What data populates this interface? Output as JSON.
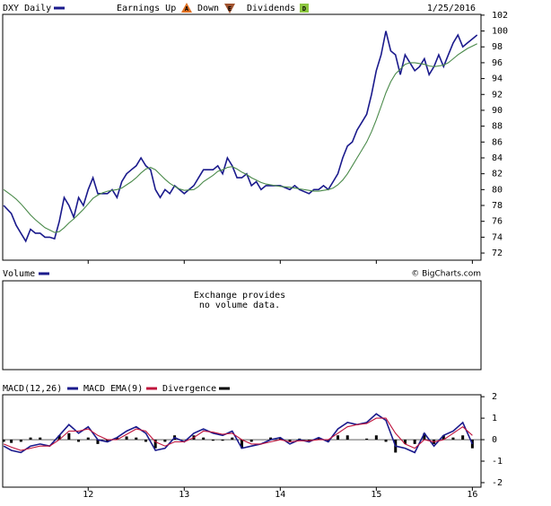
{
  "chart_data": [
    {
      "type": "line",
      "title": "DXY Daily",
      "date": "1/25/2016",
      "annotations": [
        "Earnings Up",
        "Down",
        "Dividends"
      ],
      "annotation_icons": [
        "A",
        "E",
        "D"
      ],
      "xlim": [
        11.11,
        16.09
      ],
      "xticks": [
        12,
        13,
        14,
        15,
        16
      ],
      "ylim": [
        71.1,
        102.1
      ],
      "yticks": [
        72,
        74,
        76,
        78,
        80,
        82,
        84,
        86,
        88,
        90,
        92,
        94,
        96,
        98,
        100,
        102
      ],
      "x": [
        11.12,
        11.2,
        11.25,
        11.3,
        11.35,
        11.4,
        11.45,
        11.5,
        11.55,
        11.6,
        11.65,
        11.7,
        11.75,
        11.8,
        11.85,
        11.9,
        11.95,
        12.0,
        12.05,
        12.1,
        12.15,
        12.2,
        12.25,
        12.3,
        12.35,
        12.4,
        12.45,
        12.5,
        12.55,
        12.6,
        12.65,
        12.7,
        12.75,
        12.8,
        12.85,
        12.9,
        12.95,
        13.0,
        13.1,
        13.15,
        13.2,
        13.3,
        13.35,
        13.4,
        13.45,
        13.5,
        13.55,
        13.6,
        13.65,
        13.7,
        13.75,
        13.8,
        13.85,
        13.9,
        14.0,
        14.1,
        14.15,
        14.2,
        14.3,
        14.35,
        14.4,
        14.45,
        14.5,
        14.55,
        14.6,
        14.65,
        14.7,
        14.75,
        14.8,
        14.85,
        14.9,
        14.95,
        15.0,
        15.05,
        15.1,
        15.15,
        15.2,
        15.25,
        15.3,
        15.35,
        15.4,
        15.45,
        15.5,
        15.55,
        15.6,
        15.65,
        15.7,
        15.75,
        15.8,
        15.85,
        15.9,
        15.95,
        16.0,
        16.05
      ],
      "series": [
        {
          "name": "DXY Daily",
          "color": "#1a1a8c",
          "values": [
            78,
            77,
            75.5,
            74.5,
            73.5,
            75,
            74.5,
            74.5,
            74,
            74,
            73.8,
            76,
            79,
            78,
            76.5,
            79,
            78,
            80,
            81.5,
            79.5,
            79.5,
            79.5,
            80,
            79,
            81,
            82,
            82.5,
            83,
            84,
            83,
            82.5,
            80,
            79,
            80,
            79.5,
            80.5,
            80,
            79.5,
            80.5,
            81.5,
            82.5,
            82.5,
            83,
            82,
            84,
            83,
            81.5,
            81.5,
            82,
            80.5,
            81,
            80,
            80.5,
            80.5,
            80.5,
            80,
            80.5,
            80,
            79.5,
            80,
            80,
            80.5,
            80,
            81,
            82,
            84,
            85.5,
            86,
            87.5,
            88.5,
            89.5,
            92,
            95,
            97,
            100,
            97.5,
            97,
            94.5,
            97,
            96,
            95,
            95.5,
            96.5,
            94.5,
            95.5,
            97,
            95.5,
            97,
            98.5,
            99.5,
            98,
            98.5,
            99,
            99.5
          ]
        },
        {
          "color": "#4a8a4a",
          "values": [
            80,
            79.3,
            78.8,
            78.2,
            77.5,
            76.8,
            76.2,
            75.7,
            75.2,
            74.9,
            74.6,
            74.7,
            75.2,
            75.8,
            76.3,
            76.9,
            77.5,
            78.2,
            78.9,
            79.3,
            79.6,
            79.8,
            79.9,
            80,
            80.2,
            80.6,
            81,
            81.5,
            82.1,
            82.6,
            82.8,
            82.5,
            81.9,
            81.3,
            80.8,
            80.4,
            80.1,
            79.9,
            80,
            80.4,
            81,
            81.8,
            82.3,
            82.5,
            82.8,
            82.9,
            82.6,
            82.2,
            81.9,
            81.5,
            81.2,
            80.9,
            80.7,
            80.6,
            80.4,
            80.3,
            80.2,
            80.1,
            79.9,
            79.8,
            79.8,
            79.9,
            80,
            80.2,
            80.6,
            81.2,
            82,
            83,
            84,
            85,
            86,
            87.3,
            88.8,
            90.5,
            92.2,
            93.6,
            94.6,
            95.2,
            95.8,
            96,
            96,
            95.9,
            95.8,
            95.6,
            95.5,
            95.6,
            95.7,
            96,
            96.5,
            97,
            97.4,
            97.8,
            98.1,
            98.4
          ]
        }
      ]
    },
    {
      "type": "empty",
      "title": "Volume",
      "color": "#1a1a8c",
      "source": "© BigCharts.com",
      "message": [
        "Exchange provides",
        "no volume data."
      ]
    },
    {
      "type": "line",
      "xlim": [
        11.11,
        16.09
      ],
      "xticks": [
        12,
        13,
        14,
        15,
        16
      ],
      "ylim": [
        -2.21,
        2.09
      ],
      "yticks": [
        -2,
        -1,
        0,
        1,
        2
      ],
      "x": [
        11.12,
        11.2,
        11.3,
        11.4,
        11.5,
        11.6,
        11.7,
        11.8,
        11.9,
        12.0,
        12.1,
        12.2,
        12.3,
        12.4,
        12.5,
        12.6,
        12.7,
        12.8,
        12.9,
        13.0,
        13.1,
        13.2,
        13.3,
        13.4,
        13.5,
        13.6,
        13.7,
        13.8,
        13.9,
        14.0,
        14.1,
        14.2,
        14.3,
        14.4,
        14.5,
        14.6,
        14.7,
        14.8,
        14.9,
        15.0,
        15.1,
        15.2,
        15.3,
        15.4,
        15.5,
        15.6,
        15.7,
        15.8,
        15.9,
        16.0
      ],
      "series": [
        {
          "name": "MACD(12,26)",
          "color": "#1a1a8c",
          "values": [
            -0.3,
            -0.5,
            -0.6,
            -0.3,
            -0.2,
            -0.3,
            0.2,
            0.7,
            0.3,
            0.6,
            0,
            -0.1,
            0.1,
            0.4,
            0.6,
            0.3,
            -0.5,
            -0.4,
            0.1,
            -0.1,
            0.3,
            0.5,
            0.3,
            0.2,
            0.4,
            -0.4,
            -0.3,
            -0.2,
            0,
            0.1,
            -0.2,
            0,
            -0.1,
            0.1,
            -0.1,
            0.5,
            0.8,
            0.7,
            0.8,
            1.2,
            0.9,
            -0.3,
            -0.4,
            -0.6,
            0.3,
            -0.3,
            0.2,
            0.4,
            0.8,
            -0.2
          ]
        },
        {
          "name": "MACD EMA(9)",
          "color": "#c0143c",
          "values": [
            -0.2,
            -0.35,
            -0.5,
            -0.4,
            -0.3,
            -0.3,
            0,
            0.4,
            0.4,
            0.5,
            0.2,
            0,
            0,
            0.25,
            0.5,
            0.4,
            -0.1,
            -0.3,
            -0.1,
            -0.1,
            0.1,
            0.4,
            0.35,
            0.25,
            0.3,
            0,
            -0.2,
            -0.2,
            -0.1,
            0,
            -0.1,
            -0.05,
            -0.05,
            0,
            0,
            0.3,
            0.6,
            0.7,
            0.75,
            1.0,
            1.0,
            0.3,
            -0.2,
            -0.4,
            0,
            -0.1,
            0,
            0.3,
            0.6,
            0.2
          ]
        },
        {
          "name": "Divergence",
          "color": "#000000",
          "kind": "bar",
          "values": [
            -0.1,
            -0.15,
            -0.1,
            0.1,
            0.1,
            0,
            0.2,
            0.3,
            -0.1,
            0.1,
            -0.2,
            -0.1,
            0.1,
            0.15,
            0.1,
            -0.1,
            -0.4,
            -0.1,
            0.2,
            0,
            0.2,
            0.1,
            -0.05,
            -0.05,
            0.1,
            -0.4,
            -0.1,
            0,
            0.1,
            0.1,
            -0.1,
            0.05,
            -0.05,
            0.1,
            -0.1,
            0.2,
            0.2,
            0,
            0.05,
            0.2,
            -0.1,
            -0.6,
            -0.2,
            -0.2,
            0.3,
            -0.2,
            0.2,
            0.1,
            0.2,
            -0.4
          ]
        }
      ]
    }
  ]
}
